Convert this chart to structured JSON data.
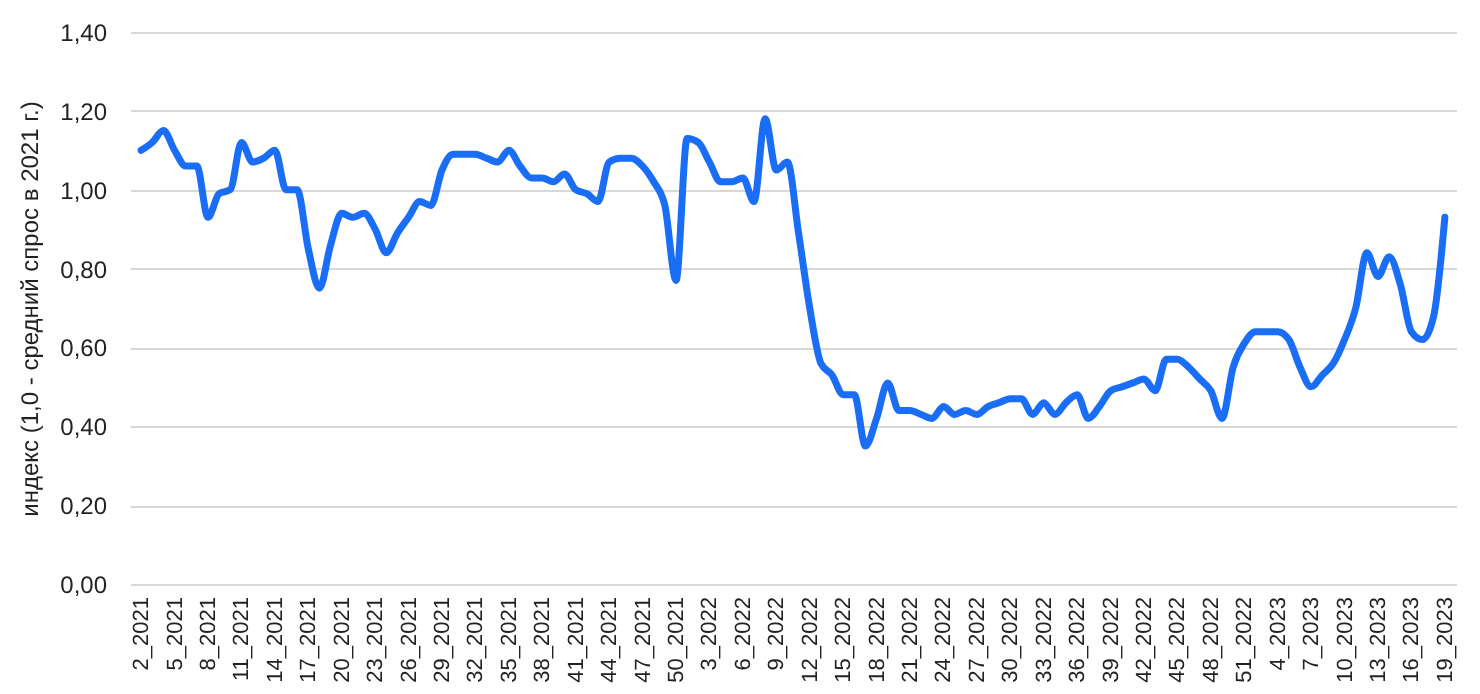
{
  "chart_data": {
    "type": "line",
    "ylabel": "индекс (1,0 - средний спрос в 2021 г.)",
    "categories": [
      "2_2021",
      null,
      null,
      "5_2021",
      null,
      null,
      "8_2021",
      null,
      null,
      "11_2021",
      null,
      null,
      "14_2021",
      null,
      null,
      "17_2021",
      null,
      null,
      "20_2021",
      null,
      null,
      "23_2021",
      null,
      null,
      "26_2021",
      null,
      null,
      "29_2021",
      null,
      null,
      "32_2021",
      null,
      null,
      "35_2021",
      null,
      null,
      "38_2021",
      null,
      null,
      "41_2021",
      null,
      null,
      "44_2021",
      null,
      null,
      "47_2021",
      null,
      null,
      "50_2021",
      null,
      null,
      "3_2022",
      null,
      null,
      "6_2022",
      null,
      null,
      "9_2022",
      null,
      null,
      "12_2022",
      null,
      null,
      "15_2022",
      null,
      null,
      "18_2022",
      null,
      null,
      "21_2022",
      null,
      null,
      "24_2022",
      null,
      null,
      "27_2022",
      null,
      null,
      "30_2022",
      null,
      null,
      "33_2022",
      null,
      null,
      "36_2022",
      null,
      null,
      "39_2022",
      null,
      null,
      "42_2022",
      null,
      null,
      "45_2022",
      null,
      null,
      "48_2022",
      null,
      null,
      "51_2022",
      null,
      null,
      "4_2023",
      null,
      null,
      "7_2023",
      null,
      null,
      "10_2023",
      null,
      null,
      "13_2023",
      null,
      null,
      "16_2023",
      null,
      null,
      "19_2023"
    ],
    "values": [
      1.1,
      1.12,
      1.15,
      1.1,
      1.06,
      1.06,
      0.93,
      0.99,
      1.0,
      1.12,
      1.07,
      1.08,
      1.1,
      1.0,
      1.0,
      0.85,
      0.75,
      0.86,
      0.94,
      0.93,
      0.94,
      0.9,
      0.84,
      0.89,
      0.93,
      0.97,
      0.96,
      1.05,
      1.09,
      1.09,
      1.09,
      1.08,
      1.07,
      1.1,
      1.06,
      1.03,
      1.03,
      1.02,
      1.04,
      1.0,
      0.99,
      0.97,
      1.07,
      1.08,
      1.08,
      1.06,
      1.02,
      0.96,
      0.77,
      1.13,
      1.12,
      1.07,
      1.02,
      1.02,
      1.03,
      0.97,
      1.18,
      1.05,
      1.07,
      0.89,
      0.7,
      0.56,
      0.53,
      0.48,
      0.48,
      0.35,
      0.42,
      0.51,
      0.44,
      0.44,
      0.43,
      0.42,
      0.45,
      0.43,
      0.44,
      0.43,
      0.45,
      0.46,
      0.47,
      0.47,
      0.43,
      0.46,
      0.43,
      0.46,
      0.48,
      0.42,
      0.45,
      0.49,
      0.5,
      0.51,
      0.52,
      0.49,
      0.57,
      0.57,
      0.55,
      0.52,
      0.49,
      0.42,
      0.55,
      0.61,
      0.64,
      0.64,
      0.64,
      0.62,
      0.55,
      0.5,
      0.53,
      0.56,
      0.62,
      0.7,
      0.84,
      0.78,
      0.83,
      0.76,
      0.64,
      0.62,
      0.68,
      0.93
    ],
    "color": "#1a6ef5",
    "ylim": [
      0,
      1.4
    ],
    "yticks": [
      {
        "value": 0,
        "label": "0,00"
      },
      {
        "value": 0.2,
        "label": "0,20"
      },
      {
        "value": 0.4,
        "label": "0,40"
      },
      {
        "value": 0.6,
        "label": "0,60"
      },
      {
        "value": 0.8,
        "label": "0,80"
      },
      {
        "value": 1.0,
        "label": "1,00"
      },
      {
        "value": 1.2,
        "label": "1,20"
      },
      {
        "value": 1.4,
        "label": "1,40"
      }
    ],
    "grid": "y"
  }
}
